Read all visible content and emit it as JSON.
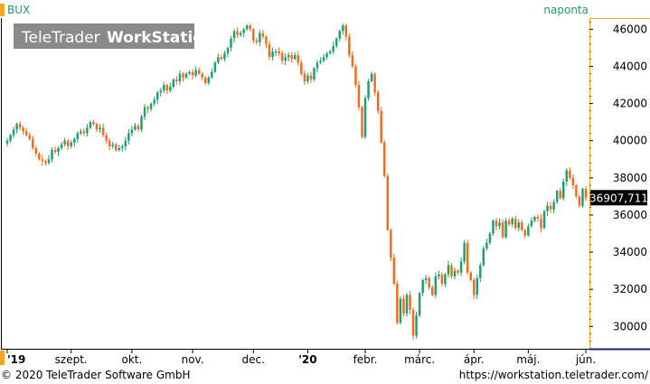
{
  "header": {
    "symbol": "BUX",
    "interval": "naponta",
    "watermark_left": "TeleTrader",
    "watermark_right": "WorkStation"
  },
  "footer": {
    "copyright": "© 2020 TeleTrader Software GmbH",
    "url": "https://workstation.teletrader.com/"
  },
  "colors": {
    "up": "#1f9e6e",
    "down": "#f26b1d",
    "axis_accent": "#f5a623",
    "price_label_bg": "#000000",
    "watermark_bg": "#8a8a8a"
  },
  "chart_data": {
    "type": "candlestick",
    "title": "BUX",
    "subtitle": "naponta",
    "xlabel": "",
    "ylabel": "",
    "ylim": [
      28800,
      46600
    ],
    "y_ticks": [
      30000,
      32000,
      34000,
      36000,
      38000,
      40000,
      42000,
      44000,
      46000
    ],
    "y_tick_labels": [
      "30000",
      "32000",
      "34000",
      "36000",
      "38000",
      "40000",
      "42000",
      "44000",
      "46000"
    ],
    "x_ticks": [
      "'19",
      "szept.",
      "okt.",
      "nov.",
      "dec.",
      "'20",
      "febr.",
      "márc.",
      "ápr.",
      "máj.",
      "jún."
    ],
    "x_tick_bold": [
      "'19",
      "'20"
    ],
    "last_value": 36907.711,
    "last_value_label": "36907,711",
    "grid": false,
    "close": [
      40000,
      40300,
      40600,
      40900,
      40700,
      40500,
      40300,
      40100,
      39600,
      39300,
      39000,
      38900,
      38800,
      39000,
      39500,
      39400,
      39600,
      39800,
      40000,
      39700,
      39900,
      40100,
      40400,
      40500,
      40400,
      40700,
      41000,
      40900,
      40600,
      40700,
      40300,
      40000,
      39700,
      39800,
      39500,
      39600,
      39700,
      40000,
      40400,
      40600,
      40800,
      40600,
      41300,
      41800,
      41700,
      42000,
      42200,
      42600,
      42700,
      43000,
      42700,
      42900,
      43300,
      43200,
      43600,
      43400,
      43600,
      43700,
      43500,
      43800,
      43600,
      43400,
      43100,
      43400,
      43700,
      44200,
      44500,
      44400,
      44700,
      45000,
      45500,
      45900,
      45700,
      45800,
      46000,
      46200,
      46000,
      45400,
      45300,
      45800,
      45600,
      45200,
      44500,
      44800,
      44800,
      44700,
      44300,
      44500,
      44600,
      44400,
      44600,
      44200,
      43600,
      43200,
      43500,
      43300,
      43900,
      44200,
      44300,
      44500,
      44700,
      44800,
      45100,
      45500,
      45900,
      46200,
      45600,
      44600,
      44000,
      43000,
      41800,
      40200,
      42300,
      43200,
      43600,
      42600,
      41600,
      39900,
      38100,
      35200,
      33700,
      32300,
      30200,
      31500,
      30700,
      31700,
      30900,
      29500,
      30600,
      31800,
      32500,
      32600,
      32100,
      31700,
      32700,
      32800,
      32300,
      32800,
      33300,
      32700,
      33000,
      32900,
      33500,
      34500,
      32900,
      32500,
      31700,
      32600,
      33300,
      34200,
      34500,
      35000,
      35700,
      35400,
      35600,
      34800,
      35700,
      35500,
      35800,
      35300,
      35600,
      35200,
      34900,
      35400,
      35700,
      35900,
      35800,
      35300,
      36200,
      36500,
      36300,
      36700,
      37300,
      36900,
      37800,
      38400,
      38000,
      37600,
      37000,
      36500,
      37400,
      36907.711
    ]
  }
}
